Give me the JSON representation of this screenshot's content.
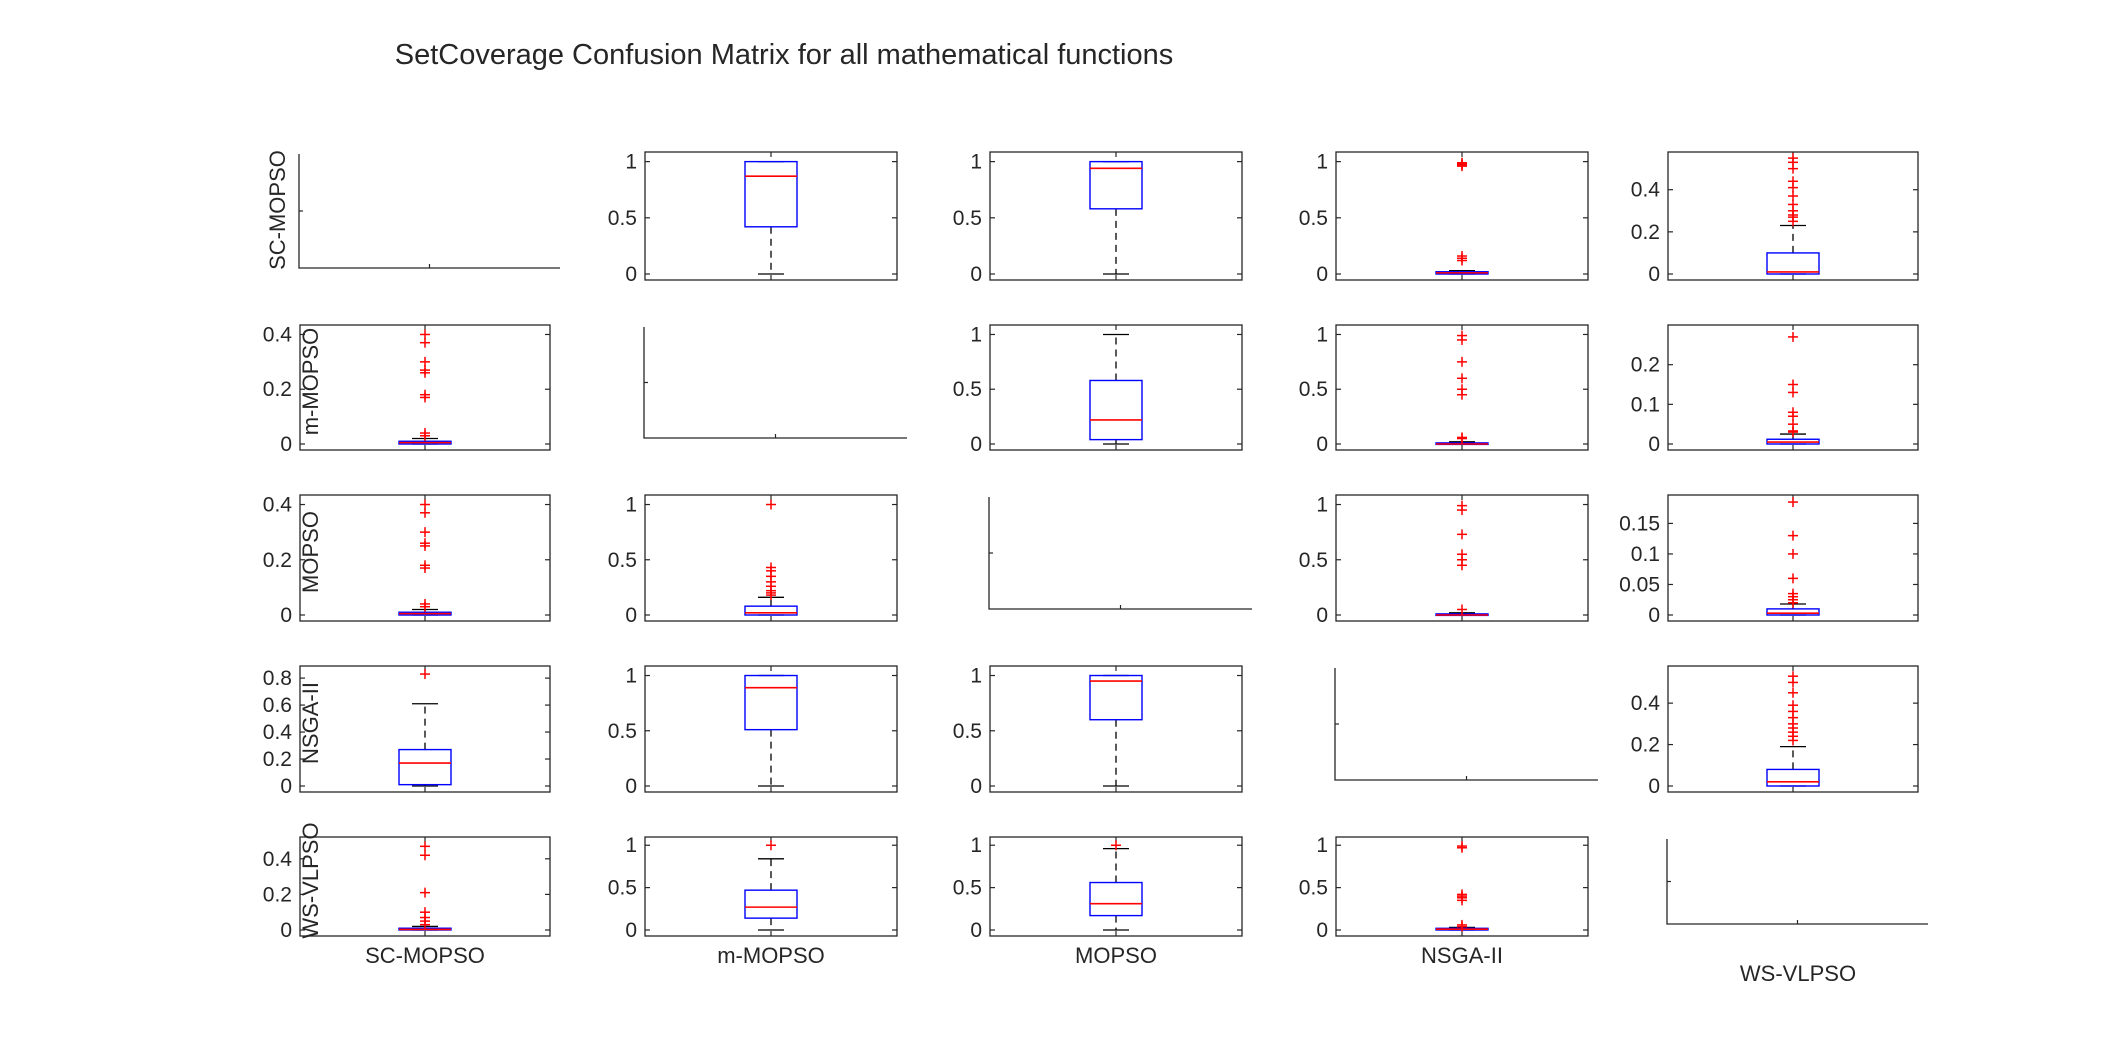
{
  "chart_data": {
    "type": "boxplot-matrix",
    "title": "SetCoverage Confusion Matrix for all mathematical functions",
    "algorithms": [
      "SC-MOPSO",
      "m-MOPSO",
      "MOPSO",
      "NSGA-II",
      "WS-VLPSO"
    ],
    "cells": [
      [
        null,
        {
          "ylim": [
            0,
            1.05
          ],
          "ticks": [
            0,
            0.5,
            1
          ],
          "tickLabels": [
            "0",
            "0.5",
            "1"
          ],
          "q1": 0.42,
          "median": 0.87,
          "q3": 1.0,
          "lo": 0.0,
          "hi": 1.0,
          "outliers": []
        },
        {
          "ylim": [
            0,
            1.05
          ],
          "ticks": [
            0,
            0.5,
            1
          ],
          "tickLabels": [
            "0",
            "0.5",
            "1"
          ],
          "q1": 0.58,
          "median": 0.94,
          "q3": 1.0,
          "lo": 0.0,
          "hi": 1.0,
          "outliers": []
        },
        {
          "ylim": [
            0,
            1.05
          ],
          "ticks": [
            0,
            0.5,
            1
          ],
          "tickLabels": [
            "0",
            "0.5",
            "1"
          ],
          "q1": 0.0,
          "median": 0.01,
          "q3": 0.02,
          "lo": 0.0,
          "hi": 0.03,
          "outliers": [
            0.96,
            0.97,
            0.98,
            0.99,
            0.14,
            0.12,
            0.16
          ]
        },
        {
          "ylim": [
            0,
            0.56
          ],
          "ticks": [
            0,
            0.2,
            0.4
          ],
          "tickLabels": [
            "0",
            "0.2",
            "0.4"
          ],
          "q1": 0.0,
          "median": 0.01,
          "q3": 0.1,
          "lo": 0.0,
          "hi": 0.23,
          "outliers": [
            0.25,
            0.27,
            0.28,
            0.3,
            0.33,
            0.37,
            0.41,
            0.44,
            0.5,
            0.53,
            0.55
          ]
        }
      ],
      [
        {
          "ylim": [
            0,
            0.42
          ],
          "ticks": [
            0,
            0.2,
            0.4
          ],
          "tickLabels": [
            "0",
            "0.2",
            "0.4"
          ],
          "q1": 0.0,
          "median": 0.005,
          "q3": 0.01,
          "lo": 0.0,
          "hi": 0.02,
          "outliers": [
            0.03,
            0.04,
            0.17,
            0.18,
            0.26,
            0.27,
            0.3,
            0.37,
            0.4
          ]
        },
        null,
        {
          "ylim": [
            0,
            1.05
          ],
          "ticks": [
            0,
            0.5,
            1
          ],
          "tickLabels": [
            "0",
            "0.5",
            "1"
          ],
          "q1": 0.04,
          "median": 0.22,
          "q3": 0.58,
          "lo": 0.0,
          "hi": 1.0,
          "outliers": []
        },
        {
          "ylim": [
            0,
            1.05
          ],
          "ticks": [
            0,
            0.5,
            1
          ],
          "tickLabels": [
            "0",
            "0.5",
            "1"
          ],
          "q1": 0.0,
          "median": 0.0,
          "q3": 0.01,
          "lo": 0.0,
          "hi": 0.02,
          "outliers": [
            0.05,
            0.06,
            0.45,
            0.5,
            0.6,
            0.75,
            0.95,
            0.99
          ]
        },
        {
          "ylim": [
            0,
            0.29
          ],
          "ticks": [
            0,
            0.1,
            0.2
          ],
          "tickLabels": [
            "0",
            "0.1",
            "0.2"
          ],
          "q1": 0.0,
          "median": 0.005,
          "q3": 0.012,
          "lo": 0.0,
          "hi": 0.025,
          "outliers": [
            0.03,
            0.033,
            0.05,
            0.07,
            0.08,
            0.13,
            0.15,
            0.27
          ]
        }
      ],
      [
        {
          "ylim": [
            0,
            0.42
          ],
          "ticks": [
            0,
            0.2,
            0.4
          ],
          "tickLabels": [
            "0",
            "0.2",
            "0.4"
          ],
          "q1": 0.0,
          "median": 0.005,
          "q3": 0.01,
          "lo": 0.0,
          "hi": 0.02,
          "outliers": [
            0.03,
            0.04,
            0.17,
            0.18,
            0.25,
            0.26,
            0.3,
            0.37,
            0.4
          ]
        },
        {
          "ylim": [
            0,
            1.05
          ],
          "ticks": [
            0,
            0.5,
            1
          ],
          "tickLabels": [
            "0",
            "0.5",
            "1"
          ],
          "q1": 0.0,
          "median": 0.02,
          "q3": 0.08,
          "lo": 0.0,
          "hi": 0.16,
          "outliers": [
            0.18,
            0.2,
            0.22,
            0.26,
            0.3,
            0.35,
            0.4,
            0.43,
            1.0
          ]
        },
        null,
        {
          "ylim": [
            0,
            1.05
          ],
          "ticks": [
            0,
            0.5,
            1
          ],
          "tickLabels": [
            "0",
            "0.5",
            "1"
          ],
          "q1": 0.0,
          "median": 0.0,
          "q3": 0.01,
          "lo": 0.0,
          "hi": 0.02,
          "outliers": [
            0.05,
            0.45,
            0.5,
            0.55,
            0.73,
            0.95,
            0.99
          ]
        },
        {
          "ylim": [
            0,
            0.19
          ],
          "ticks": [
            0,
            0.05,
            0.1,
            0.15
          ],
          "tickLabels": [
            "0",
            "0.05",
            "0.1",
            "0.15"
          ],
          "q1": 0.0,
          "median": 0.003,
          "q3": 0.01,
          "lo": 0.0,
          "hi": 0.018,
          "outliers": [
            0.02,
            0.025,
            0.03,
            0.035,
            0.06,
            0.1,
            0.13,
            0.185
          ]
        }
      ],
      [
        {
          "ylim": [
            0,
            0.86
          ],
          "ticks": [
            0,
            0.2,
            0.4,
            0.6,
            0.8
          ],
          "tickLabels": [
            "0",
            "0.2",
            "0.4",
            "0.6",
            "0.8"
          ],
          "q1": 0.01,
          "median": 0.17,
          "q3": 0.27,
          "lo": 0.0,
          "hi": 0.61,
          "outliers": [
            0.83
          ]
        },
        {
          "ylim": [
            0,
            1.05
          ],
          "ticks": [
            0,
            0.5,
            1
          ],
          "tickLabels": [
            "0",
            "0.5",
            "1"
          ],
          "q1": 0.51,
          "median": 0.89,
          "q3": 1.0,
          "lo": 0.0,
          "hi": 1.0,
          "outliers": []
        },
        {
          "ylim": [
            0,
            1.05
          ],
          "ticks": [
            0,
            0.5,
            1
          ],
          "tickLabels": [
            "0",
            "0.5",
            "1"
          ],
          "q1": 0.6,
          "median": 0.95,
          "q3": 1.0,
          "lo": 0.0,
          "hi": 1.0,
          "outliers": []
        },
        null,
        {
          "ylim": [
            0,
            0.56
          ],
          "ticks": [
            0,
            0.2,
            0.4
          ],
          "tickLabels": [
            "0",
            "0.2",
            "0.4"
          ],
          "q1": 0.0,
          "median": 0.02,
          "q3": 0.08,
          "lo": 0.0,
          "hi": 0.19,
          "outliers": [
            0.22,
            0.24,
            0.26,
            0.28,
            0.3,
            0.33,
            0.36,
            0.39,
            0.45,
            0.5,
            0.53
          ]
        }
      ],
      [
        {
          "ylim": [
            0,
            0.5
          ],
          "ticks": [
            0,
            0.2,
            0.4
          ],
          "tickLabels": [
            "0",
            "0.2",
            "0.4"
          ],
          "q1": 0.0,
          "median": 0.003,
          "q3": 0.01,
          "lo": 0.0,
          "hi": 0.02,
          "outliers": [
            0.03,
            0.05,
            0.07,
            0.1,
            0.21,
            0.42,
            0.47
          ]
        },
        {
          "ylim": [
            0,
            1.05
          ],
          "ticks": [
            0,
            0.5,
            1
          ],
          "tickLabels": [
            "0",
            "0.5",
            "1"
          ],
          "q1": 0.14,
          "median": 0.27,
          "q3": 0.47,
          "lo": 0.0,
          "hi": 0.84,
          "outliers": [
            1.0
          ]
        },
        {
          "ylim": [
            0,
            1.05
          ],
          "ticks": [
            0,
            0.5,
            1
          ],
          "tickLabels": [
            "0",
            "0.5",
            "1"
          ],
          "q1": 0.17,
          "median": 0.31,
          "q3": 0.56,
          "lo": 0.0,
          "hi": 0.96,
          "outliers": [
            1.0
          ]
        },
        {
          "ylim": [
            0,
            1.05
          ],
          "ticks": [
            0,
            0.5,
            1
          ],
          "tickLabels": [
            "0",
            "0.5",
            "1"
          ],
          "q1": 0.0,
          "median": 0.01,
          "q3": 0.02,
          "lo": 0.0,
          "hi": 0.03,
          "outliers": [
            0.04,
            0.06,
            0.35,
            0.38,
            0.4,
            0.42,
            0.97,
            0.99
          ]
        },
        null
      ]
    ]
  }
}
